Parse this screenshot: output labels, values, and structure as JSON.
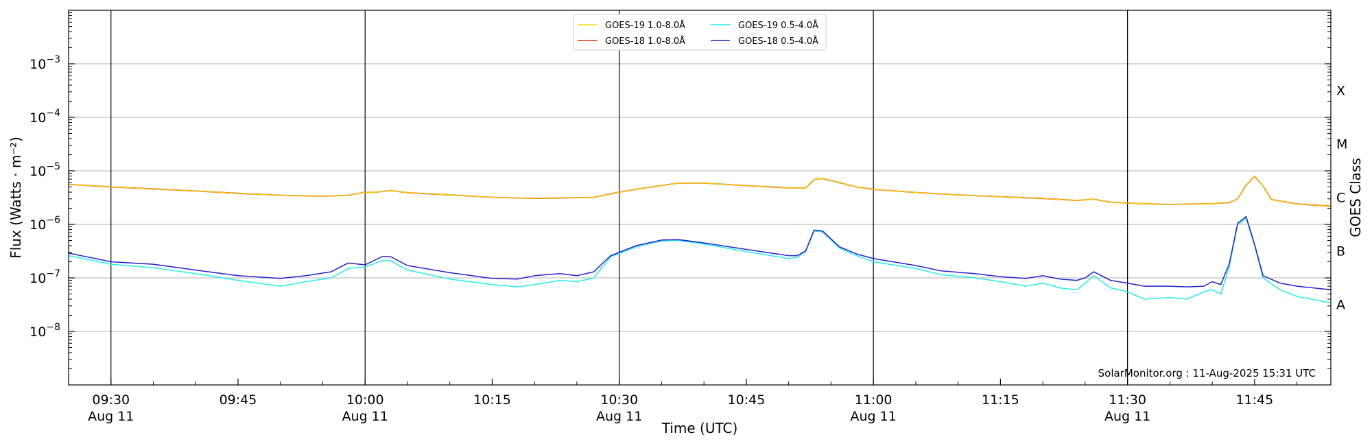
{
  "chart_data": {
    "type": "line",
    "xlabel": "Time (UTC)",
    "ylabel": "Flux (Watts · m⁻²)",
    "ylabel_right": "GOES Class",
    "y_scale": "log",
    "ylim": [
      1e-09,
      0.01
    ],
    "xlim": [
      "09:25",
      "11:54"
    ],
    "grid": "horizontal at each decade",
    "vertical_lines": [
      "09:30",
      "10:00",
      "10:30",
      "11:00",
      "11:30"
    ],
    "x_ticks": [
      {
        "time": "09:30",
        "line1": "09:30",
        "line2": "Aug 11"
      },
      {
        "time": "09:45",
        "line1": "09:45",
        "line2": ""
      },
      {
        "time": "10:00",
        "line1": "10:00",
        "line2": "Aug 11"
      },
      {
        "time": "10:15",
        "line1": "10:15",
        "line2": ""
      },
      {
        "time": "10:30",
        "line1": "10:30",
        "line2": "Aug 11"
      },
      {
        "time": "10:45",
        "line1": "10:45",
        "line2": ""
      },
      {
        "time": "11:00",
        "line1": "11:00",
        "line2": "Aug 11"
      },
      {
        "time": "11:15",
        "line1": "11:15",
        "line2": ""
      },
      {
        "time": "11:30",
        "line1": "11:30",
        "line2": "Aug 11"
      },
      {
        "time": "11:45",
        "line1": "11:45",
        "line2": ""
      }
    ],
    "y_ticks": [
      {
        "value": 1e-08,
        "base": "10",
        "exp": "−8"
      },
      {
        "value": 1e-07,
        "base": "10",
        "exp": "−7"
      },
      {
        "value": 1e-06,
        "base": "10",
        "exp": "−6"
      },
      {
        "value": 1e-05,
        "base": "10",
        "exp": "−5"
      },
      {
        "value": 0.0001,
        "base": "10",
        "exp": "−4"
      },
      {
        "value": 0.001,
        "base": "10",
        "exp": "−3"
      }
    ],
    "goes_classes": [
      {
        "label": "A",
        "value": 3.2e-08
      },
      {
        "label": "B",
        "value": 3.2e-07
      },
      {
        "label": "C",
        "value": 3.2e-06
      },
      {
        "label": "M",
        "value": 3.2e-05
      },
      {
        "label": "X",
        "value": 0.00032
      }
    ],
    "legend": {
      "placement": "top-center",
      "entries": [
        {
          "label": "GOES-19 1.0-8.0Å",
          "color": "#f5d800"
        },
        {
          "label": "GOES-18 1.0-8.0Å",
          "color": "#e8300a"
        },
        {
          "label": "GOES-19 0.5-4.0Å",
          "color": "#22eeee"
        },
        {
          "label": "GOES-18 0.5-4.0Å",
          "color": "#2222cc"
        }
      ]
    },
    "credit": "SolarMonitor.org : 11-Aug-2025 15:31 UTC",
    "series": [
      {
        "name": "GOES-18 1.0-8.0Å",
        "color": "#e8300a",
        "width": 1.8,
        "points": [
          [
            "09:25",
            5.6e-06
          ],
          [
            "09:30",
            5e-06
          ],
          [
            "09:35",
            4.6e-06
          ],
          [
            "09:40",
            4.2e-06
          ],
          [
            "09:45",
            3.8e-06
          ],
          [
            "09:50",
            3.5e-06
          ],
          [
            "09:55",
            3.35e-06
          ],
          [
            "09:58",
            3.5e-06
          ],
          [
            "10:00",
            4e-06
          ],
          [
            "10:01",
            3.95e-06
          ],
          [
            "10:03",
            4.3e-06
          ],
          [
            "10:05",
            3.9e-06
          ],
          [
            "10:10",
            3.55e-06
          ],
          [
            "10:15",
            3.2e-06
          ],
          [
            "10:20",
            3.05e-06
          ],
          [
            "10:25",
            3.15e-06
          ],
          [
            "10:27",
            3.2e-06
          ],
          [
            "10:30",
            4e-06
          ],
          [
            "10:33",
            4.8e-06
          ],
          [
            "10:37",
            5.9e-06
          ],
          [
            "10:40",
            5.9e-06
          ],
          [
            "10:45",
            5.3e-06
          ],
          [
            "10:50",
            4.8e-06
          ],
          [
            "10:52",
            4.8e-06
          ],
          [
            "10:53",
            6.9e-06
          ],
          [
            "10:54",
            7.2e-06
          ],
          [
            "10:56",
            6e-06
          ],
          [
            "10:58",
            5e-06
          ],
          [
            "11:00",
            4.5e-06
          ],
          [
            "11:05",
            3.95e-06
          ],
          [
            "11:10",
            3.55e-06
          ],
          [
            "11:15",
            3.3e-06
          ],
          [
            "11:20",
            3.05e-06
          ],
          [
            "11:24",
            2.8e-06
          ],
          [
            "11:26",
            2.95e-06
          ],
          [
            "11:28",
            2.6e-06
          ],
          [
            "11:30",
            2.5e-06
          ],
          [
            "11:35",
            2.35e-06
          ],
          [
            "11:40",
            2.45e-06
          ],
          [
            "11:42",
            2.55e-06
          ],
          [
            "11:43",
            3e-06
          ],
          [
            "11:44",
            5.4e-06
          ],
          [
            "11:45",
            7.9e-06
          ],
          [
            "11:46",
            5.2e-06
          ],
          [
            "11:47",
            2.9e-06
          ],
          [
            "11:50",
            2.4e-06
          ],
          [
            "11:54",
            2.2e-06
          ]
        ]
      },
      {
        "name": "GOES-19 1.0-8.0Å",
        "color": "#f5d800",
        "width": 1.2,
        "points": [
          [
            "09:25",
            5.6e-06
          ],
          [
            "09:30",
            5e-06
          ],
          [
            "09:35",
            4.6e-06
          ],
          [
            "09:40",
            4.2e-06
          ],
          [
            "09:45",
            3.8e-06
          ],
          [
            "09:50",
            3.5e-06
          ],
          [
            "09:55",
            3.35e-06
          ],
          [
            "09:58",
            3.5e-06
          ],
          [
            "10:00",
            4e-06
          ],
          [
            "10:01",
            3.95e-06
          ],
          [
            "10:03",
            4.3e-06
          ],
          [
            "10:05",
            3.9e-06
          ],
          [
            "10:10",
            3.55e-06
          ],
          [
            "10:15",
            3.2e-06
          ],
          [
            "10:20",
            3.05e-06
          ],
          [
            "10:25",
            3.15e-06
          ],
          [
            "10:27",
            3.2e-06
          ],
          [
            "10:30",
            4e-06
          ],
          [
            "10:33",
            4.8e-06
          ],
          [
            "10:37",
            5.9e-06
          ],
          [
            "10:40",
            5.9e-06
          ],
          [
            "10:45",
            5.3e-06
          ],
          [
            "10:50",
            4.8e-06
          ],
          [
            "10:52",
            4.8e-06
          ],
          [
            "10:53",
            6.9e-06
          ],
          [
            "10:54",
            7.2e-06
          ],
          [
            "10:56",
            6e-06
          ],
          [
            "10:58",
            5e-06
          ],
          [
            "11:00",
            4.5e-06
          ],
          [
            "11:05",
            3.95e-06
          ],
          [
            "11:10",
            3.55e-06
          ],
          [
            "11:15",
            3.3e-06
          ],
          [
            "11:20",
            3.05e-06
          ],
          [
            "11:24",
            2.8e-06
          ],
          [
            "11:26",
            2.95e-06
          ],
          [
            "11:28",
            2.6e-06
          ],
          [
            "11:30",
            2.5e-06
          ],
          [
            "11:35",
            2.35e-06
          ],
          [
            "11:40",
            2.45e-06
          ],
          [
            "11:42",
            2.55e-06
          ],
          [
            "11:43",
            3e-06
          ],
          [
            "11:44",
            5.4e-06
          ],
          [
            "11:45",
            7.9e-06
          ],
          [
            "11:46",
            5.2e-06
          ],
          [
            "11:47",
            2.9e-06
          ],
          [
            "11:50",
            2.4e-06
          ],
          [
            "11:54",
            2.2e-06
          ]
        ]
      },
      {
        "name": "GOES-19 0.5-4.0Å",
        "color": "#22eeee",
        "width": 1.5,
        "points": [
          [
            "09:25",
            2.6e-07
          ],
          [
            "09:30",
            1.8e-07
          ],
          [
            "09:35",
            1.55e-07
          ],
          [
            "09:40",
            1.2e-07
          ],
          [
            "09:45",
            9e-08
          ],
          [
            "09:50",
            7e-08
          ],
          [
            "09:53",
            8.5e-08
          ],
          [
            "09:56",
            1e-07
          ],
          [
            "09:58",
            1.5e-07
          ],
          [
            "10:00",
            1.6e-07
          ],
          [
            "10:02",
            2.1e-07
          ],
          [
            "10:03",
            2.1e-07
          ],
          [
            "10:05",
            1.4e-07
          ],
          [
            "10:10",
            9.5e-08
          ],
          [
            "10:15",
            7.5e-08
          ],
          [
            "10:18",
            6.8e-08
          ],
          [
            "10:20",
            7.5e-08
          ],
          [
            "10:23",
            9e-08
          ],
          [
            "10:25",
            8.5e-08
          ],
          [
            "10:27",
            1e-07
          ],
          [
            "10:29",
            2.5e-07
          ],
          [
            "10:32",
            3.8e-07
          ],
          [
            "10:35",
            4.9e-07
          ],
          [
            "10:37",
            5e-07
          ],
          [
            "10:40",
            4.3e-07
          ],
          [
            "10:45",
            3.1e-07
          ],
          [
            "10:50",
            2.3e-07
          ],
          [
            "10:51",
            2.4e-07
          ],
          [
            "10:52",
            3.1e-07
          ],
          [
            "10:53",
            7.5e-07
          ],
          [
            "10:54",
            7.2e-07
          ],
          [
            "10:56",
            3.6e-07
          ],
          [
            "10:58",
            2.6e-07
          ],
          [
            "11:00",
            2e-07
          ],
          [
            "11:05",
            1.5e-07
          ],
          [
            "11:08",
            1.15e-07
          ],
          [
            "11:12",
            1e-07
          ],
          [
            "11:15",
            8.5e-08
          ],
          [
            "11:18",
            7e-08
          ],
          [
            "11:20",
            8e-08
          ],
          [
            "11:22",
            6.5e-08
          ],
          [
            "11:24",
            6e-08
          ],
          [
            "11:25",
            8e-08
          ],
          [
            "11:26",
            1.1e-07
          ],
          [
            "11:28",
            6.5e-08
          ],
          [
            "11:30",
            5.5e-08
          ],
          [
            "11:32",
            4e-08
          ],
          [
            "11:35",
            4.3e-08
          ],
          [
            "11:37",
            4e-08
          ],
          [
            "11:39",
            5.5e-08
          ],
          [
            "11:40",
            6e-08
          ],
          [
            "11:41",
            5e-08
          ],
          [
            "11:42",
            1.6e-07
          ],
          [
            "11:43",
            1e-06
          ],
          [
            "11:44",
            1.3e-06
          ],
          [
            "11:45",
            4e-07
          ],
          [
            "11:46",
            1e-07
          ],
          [
            "11:48",
            6e-08
          ],
          [
            "11:50",
            4.5e-08
          ],
          [
            "11:54",
            3.4e-08
          ]
        ]
      },
      {
        "name": "GOES-18 0.5-4.0Å",
        "color": "#2222cc",
        "width": 1.5,
        "points": [
          [
            "09:25",
            2.9e-07
          ],
          [
            "09:30",
            2e-07
          ],
          [
            "09:35",
            1.8e-07
          ],
          [
            "09:40",
            1.4e-07
          ],
          [
            "09:45",
            1.1e-07
          ],
          [
            "09:50",
            9.8e-08
          ],
          [
            "09:53",
            1.1e-07
          ],
          [
            "09:56",
            1.3e-07
          ],
          [
            "09:58",
            1.9e-07
          ],
          [
            "10:00",
            1.75e-07
          ],
          [
            "10:02",
            2.5e-07
          ],
          [
            "10:03",
            2.5e-07
          ],
          [
            "10:05",
            1.7e-07
          ],
          [
            "10:10",
            1.25e-07
          ],
          [
            "10:15",
            9.8e-08
          ],
          [
            "10:18",
            9.5e-08
          ],
          [
            "10:20",
            1.1e-07
          ],
          [
            "10:23",
            1.2e-07
          ],
          [
            "10:25",
            1.1e-07
          ],
          [
            "10:27",
            1.3e-07
          ],
          [
            "10:29",
            2.6e-07
          ],
          [
            "10:32",
            4e-07
          ],
          [
            "10:35",
            5.1e-07
          ],
          [
            "10:37",
            5.2e-07
          ],
          [
            "10:40",
            4.5e-07
          ],
          [
            "10:45",
            3.4e-07
          ],
          [
            "10:50",
            2.6e-07
          ],
          [
            "10:51",
            2.6e-07
          ],
          [
            "10:52",
            3.2e-07
          ],
          [
            "10:53",
            7.8e-07
          ],
          [
            "10:54",
            7.5e-07
          ],
          [
            "10:56",
            3.8e-07
          ],
          [
            "10:58",
            2.8e-07
          ],
          [
            "11:00",
            2.3e-07
          ],
          [
            "11:05",
            1.7e-07
          ],
          [
            "11:08",
            1.35e-07
          ],
          [
            "11:12",
            1.2e-07
          ],
          [
            "11:15",
            1.05e-07
          ],
          [
            "11:18",
            9.8e-08
          ],
          [
            "11:20",
            1.1e-07
          ],
          [
            "11:22",
            9.5e-08
          ],
          [
            "11:24",
            9e-08
          ],
          [
            "11:25",
            1e-07
          ],
          [
            "11:26",
            1.3e-07
          ],
          [
            "11:28",
            9e-08
          ],
          [
            "11:30",
            8e-08
          ],
          [
            "11:32",
            7e-08
          ],
          [
            "11:35",
            7e-08
          ],
          [
            "11:37",
            6.8e-08
          ],
          [
            "11:39",
            7e-08
          ],
          [
            "11:40",
            8.5e-08
          ],
          [
            "11:41",
            7.5e-08
          ],
          [
            "11:42",
            1.8e-07
          ],
          [
            "11:43",
            1.05e-06
          ],
          [
            "11:44",
            1.4e-06
          ],
          [
            "11:45",
            4.2e-07
          ],
          [
            "11:46",
            1.1e-07
          ],
          [
            "11:48",
            8e-08
          ],
          [
            "11:50",
            7e-08
          ],
          [
            "11:54",
            6e-08
          ]
        ]
      }
    ]
  }
}
